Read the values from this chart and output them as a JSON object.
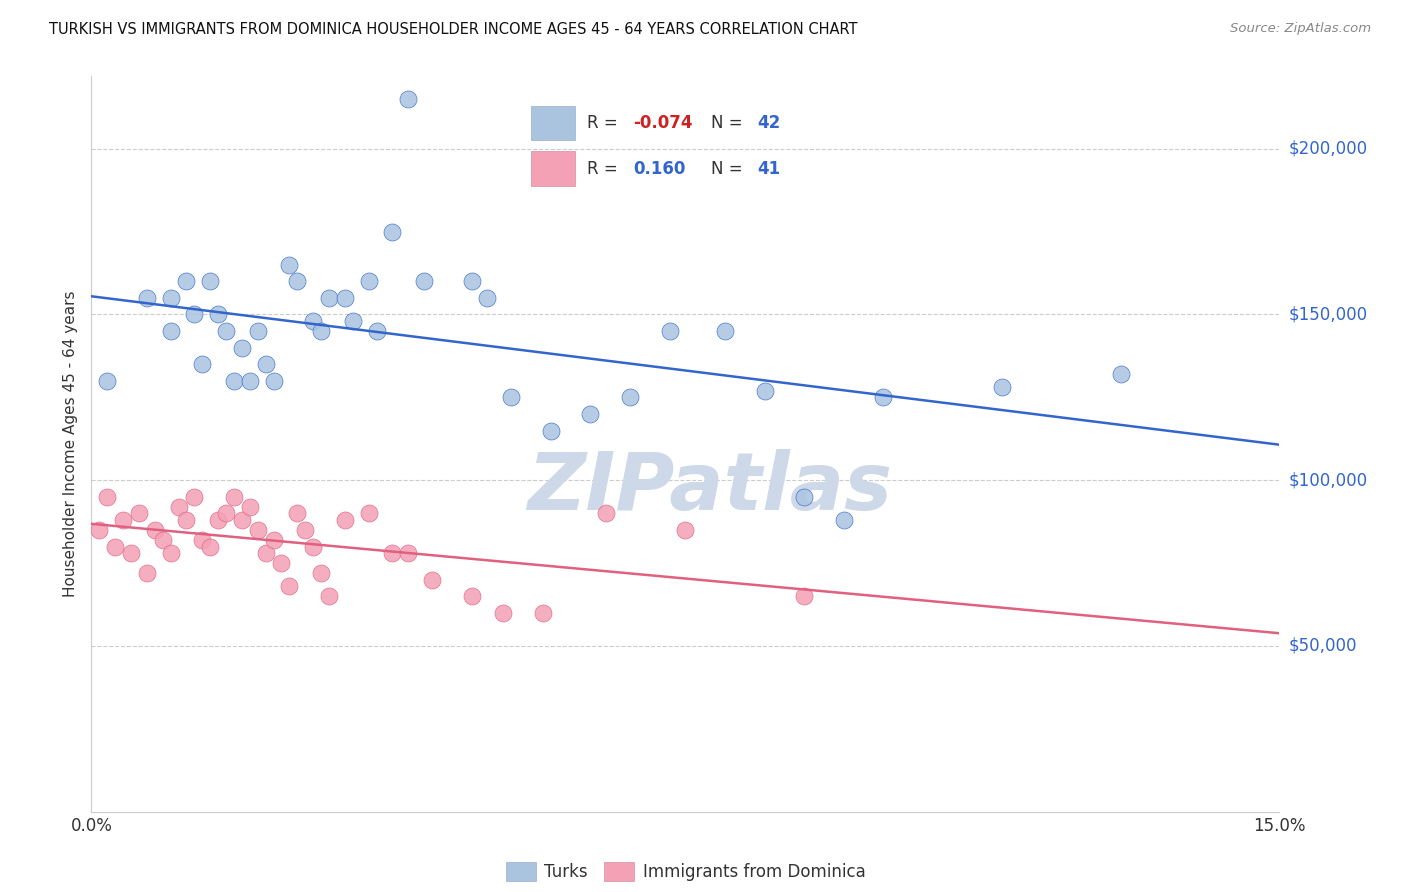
{
  "title": "TURKISH VS IMMIGRANTS FROM DOMINICA HOUSEHOLDER INCOME AGES 45 - 64 YEARS CORRELATION CHART",
  "source": "Source: ZipAtlas.com",
  "ylabel": "Householder Income Ages 45 - 64 years",
  "ytick_values": [
    50000,
    100000,
    150000,
    200000
  ],
  "ytick_labels": [
    "$50,000",
    "$100,000",
    "$150,000",
    "$200,000"
  ],
  "ylim": [
    0,
    222000
  ],
  "xlim": [
    0.0,
    0.15
  ],
  "turks_R": -0.074,
  "turks_N": 42,
  "dominica_R": 0.16,
  "dominica_N": 41,
  "turks_color": "#aac4e0",
  "dominica_color": "#f4a0b5",
  "turks_line_color": "#3366cc",
  "dominica_line_color": "#e06080",
  "watermark_text": "ZIPatlas",
  "watermark_color": "#cdd8e8",
  "legend_R_color": "#cc2222",
  "legend_N_color": "#3366cc",
  "right_label_color": "#3366cc",
  "turks_x": [
    0.002,
    0.007,
    0.01,
    0.01,
    0.012,
    0.013,
    0.014,
    0.015,
    0.016,
    0.017,
    0.018,
    0.019,
    0.02,
    0.021,
    0.022,
    0.023,
    0.025,
    0.026,
    0.028,
    0.029,
    0.03,
    0.032,
    0.033,
    0.035,
    0.036,
    0.038,
    0.04,
    0.042,
    0.048,
    0.05,
    0.053,
    0.058,
    0.063,
    0.068,
    0.073,
    0.08,
    0.085,
    0.09,
    0.095,
    0.1,
    0.115,
    0.13
  ],
  "turks_y": [
    130000,
    155000,
    155000,
    145000,
    160000,
    150000,
    135000,
    160000,
    150000,
    145000,
    130000,
    140000,
    130000,
    145000,
    135000,
    130000,
    165000,
    160000,
    148000,
    145000,
    155000,
    155000,
    148000,
    160000,
    145000,
    175000,
    215000,
    160000,
    160000,
    155000,
    125000,
    115000,
    120000,
    125000,
    145000,
    145000,
    127000,
    95000,
    88000,
    125000,
    128000,
    132000
  ],
  "dominica_x": [
    0.001,
    0.002,
    0.003,
    0.004,
    0.005,
    0.006,
    0.007,
    0.008,
    0.009,
    0.01,
    0.011,
    0.012,
    0.013,
    0.014,
    0.015,
    0.016,
    0.017,
    0.018,
    0.019,
    0.02,
    0.021,
    0.022,
    0.023,
    0.024,
    0.025,
    0.026,
    0.027,
    0.028,
    0.029,
    0.03,
    0.032,
    0.035,
    0.038,
    0.04,
    0.043,
    0.048,
    0.052,
    0.057,
    0.065,
    0.075,
    0.09
  ],
  "dominica_y": [
    85000,
    95000,
    80000,
    88000,
    78000,
    90000,
    72000,
    85000,
    82000,
    78000,
    92000,
    88000,
    95000,
    82000,
    80000,
    88000,
    90000,
    95000,
    88000,
    92000,
    85000,
    78000,
    82000,
    75000,
    68000,
    90000,
    85000,
    80000,
    72000,
    65000,
    88000,
    90000,
    78000,
    78000,
    70000,
    65000,
    60000,
    60000,
    90000,
    85000,
    65000
  ]
}
